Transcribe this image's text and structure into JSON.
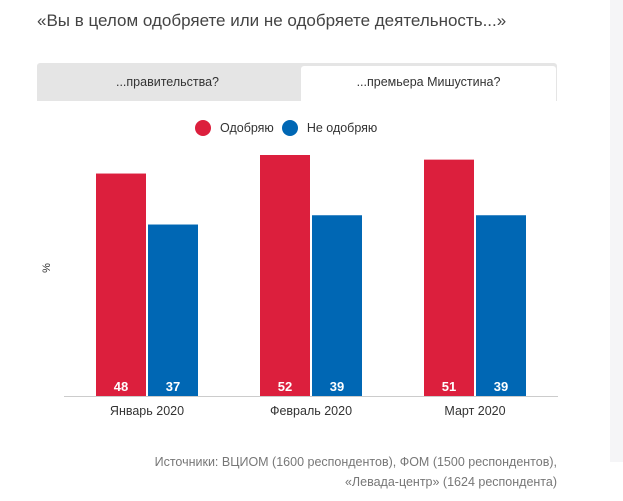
{
  "title": "«Вы в целом одобряете или не одобряете деятельность...»",
  "tabs": [
    {
      "label": "...правительства?",
      "active": false
    },
    {
      "label": "...премьера Мишустина?",
      "active": true
    }
  ],
  "chart_data": {
    "type": "bar",
    "categories": [
      "Январь 2020",
      "Февраль 2020",
      "Март 2020"
    ],
    "series": [
      {
        "name": "Одобряю",
        "color": "#dc1f3d",
        "values": [
          48,
          52,
          51
        ]
      },
      {
        "name": "Не одобряю",
        "color": "#0067b4",
        "values": [
          37,
          39,
          39
        ]
      }
    ],
    "ylabel": "%",
    "ylim": [
      0,
      52
    ],
    "legend": "top-center",
    "grid": false
  },
  "source": {
    "line1": "Источники: ВЦИОМ (1600 респондентов), ФОМ (1500 респондентов),",
    "line2": "«Левада-центр» (1624 респондента)"
  }
}
